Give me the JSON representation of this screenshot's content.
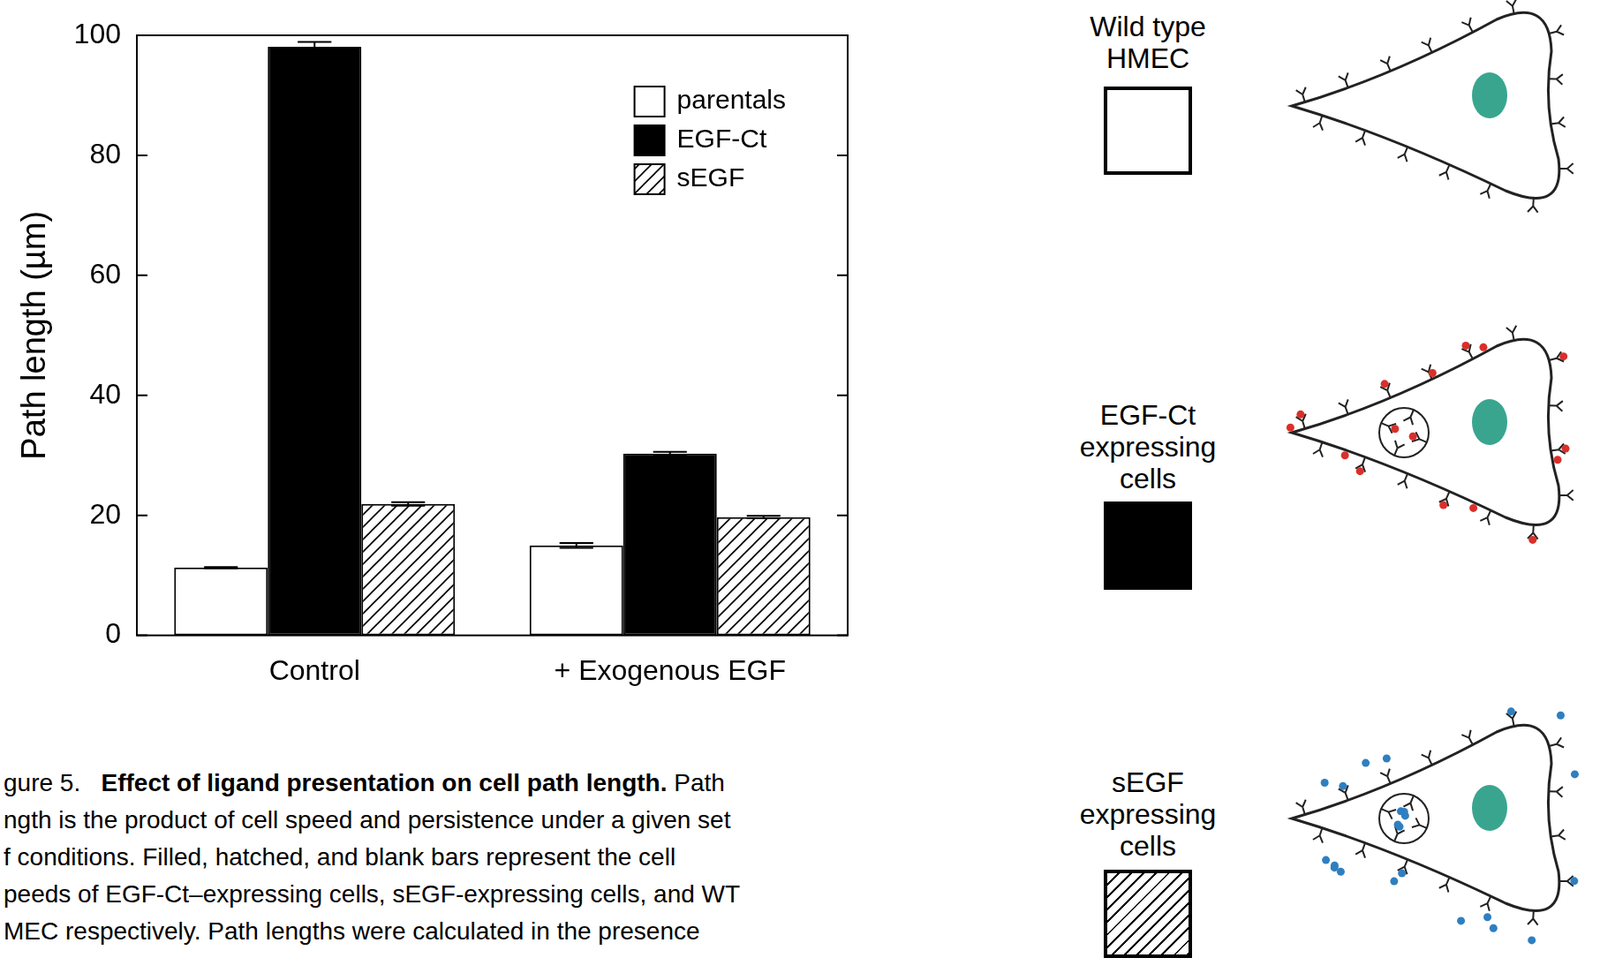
{
  "chart_data": {
    "type": "bar",
    "y_label": "Path length (µm)",
    "categories": [
      "Control",
      "+ Exogenous EGF"
    ],
    "series": [
      {
        "name": "parentals",
        "color": "#ffffff",
        "values": [
          11.3,
          15.0
        ],
        "errors": [
          0.1,
          0.4
        ]
      },
      {
        "name": "EGF-Ct",
        "color": "#000000",
        "values": [
          98.1,
          30.3
        ],
        "errors": [
          0.8,
          0.3
        ]
      },
      {
        "name": "sEGF",
        "color": "#000000",
        "marker": "hatch",
        "values": [
          21.9,
          19.7
        ],
        "errors": [
          0.3,
          0.2
        ]
      }
    ],
    "ylim": [
      0,
      100
    ],
    "yticks": [
      0,
      20,
      40,
      60,
      80,
      100
    ],
    "grid": false,
    "legend": "upper right"
  },
  "caption": {
    "figure_label": "gure 5.",
    "title": "Effect of ligand presentation on cell path length.",
    "lines": [
      "Path",
      "ngth is the product of cell speed and persistence under a given set",
      "f conditions. Filled, hatched, and blank bars represent the cell",
      "peeds of EGF-Ct–expressing cells, sEGF-expressing cells, and WT",
      "MEC respectively. Path lengths were calculated in the presence"
    ]
  },
  "diagram": {
    "labels": [
      [
        "Wild type",
        "HMEC"
      ],
      [
        "EGF-Ct",
        "expressing",
        "cells"
      ],
      [
        "sEGF",
        "expressing",
        "cells"
      ]
    ]
  }
}
